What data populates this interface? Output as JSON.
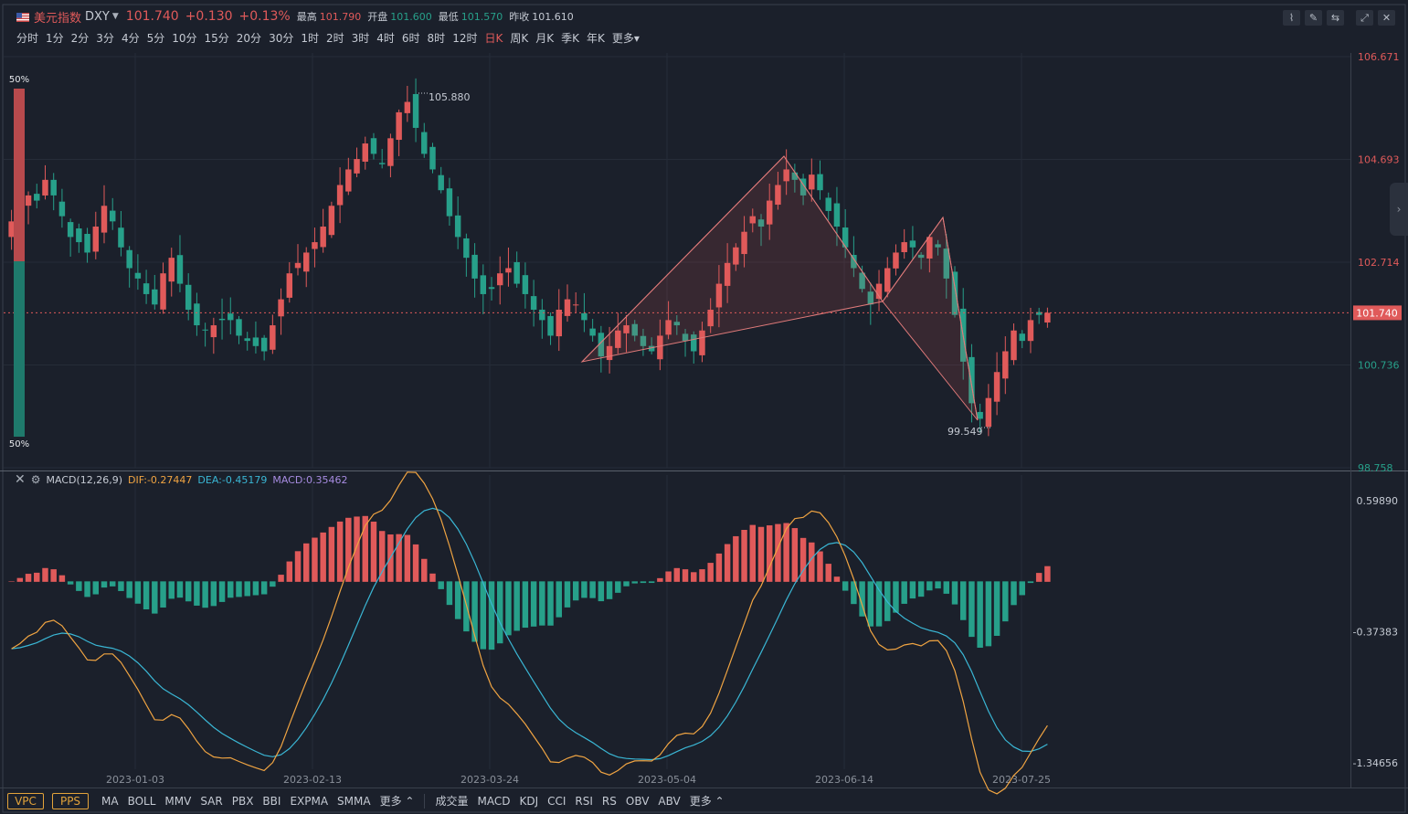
{
  "header": {
    "name": "美元指数",
    "code": "DXY",
    "price": "101.740",
    "change": "+0.130",
    "change_pct": "+0.13%",
    "high_label": "最高",
    "high": "101.790",
    "open_label": "开盘",
    "open": "101.600",
    "low_label": "最低",
    "low": "101.570",
    "prev_label": "昨收",
    "prev": "101.610"
  },
  "toolbar_icons": [
    "line-chart-icon",
    "draw-pen-icon",
    "compare-icon",
    "expand-icon",
    "close-icon"
  ],
  "periods": [
    "分时",
    "1分",
    "2分",
    "3分",
    "4分",
    "5分",
    "10分",
    "15分",
    "20分",
    "30分",
    "1时",
    "2时",
    "3时",
    "4时",
    "6时",
    "8时",
    "12时",
    "日K",
    "周K",
    "月K",
    "季K",
    "年K",
    "更多"
  ],
  "active_period": "日K",
  "vpc": {
    "top": "50%",
    "bottom": "50%"
  },
  "price_axis": [
    "106.671",
    "104.693",
    "102.714",
    "100.736",
    "98.758"
  ],
  "current_price_tag": "101.740",
  "annotations": {
    "high": "105.880",
    "low": "99.549"
  },
  "date_axis": [
    "2023-01-03",
    "2023-02-13",
    "2023-03-24",
    "2023-05-04",
    "2023-06-14",
    "2023-07-25"
  ],
  "macd": {
    "title": "MACD(12,26,9)",
    "dif": "DIF:-0.27447",
    "dea": "DEA:-0.45179",
    "macd": "MACD:0.35462",
    "axis": [
      "0.59890",
      "-0.37383",
      "-1.34656"
    ]
  },
  "indicator_bar": {
    "boxes": [
      "VPC",
      "PPS"
    ],
    "main": [
      "MA",
      "BOLL",
      "MMV",
      "SAR",
      "PBX",
      "BBI",
      "EXPMA",
      "SMMA",
      "更多"
    ],
    "sub": [
      "成交量",
      "MACD",
      "KDJ",
      "CCI",
      "RSI",
      "RS",
      "OBV",
      "ABV",
      "更多"
    ]
  },
  "colors": {
    "up": "#e05a5a",
    "down": "#27a08a",
    "dif": "#f0a442",
    "dea": "#3ab6d4",
    "bg": "#1b202b"
  },
  "chart_data": {
    "type": "candlestick",
    "annotation_pattern_points": [
      [
        "2023-04-14",
        100.85
      ],
      [
        "2023-06-05",
        104.7
      ],
      [
        "2023-06-21",
        101.95
      ],
      [
        "2023-07-10",
        103.25
      ],
      [
        "2023-07-18",
        99.8
      ]
    ],
    "closes_daily_approx": [
      103.5,
      103.8,
      104.0,
      103.9,
      104.3,
      104.0,
      103.6,
      103.2,
      103.1,
      102.9,
      103.4,
      103.8,
      103.5,
      103.0,
      102.6,
      102.4,
      102.1,
      101.9,
      102.5,
      102.8,
      102.3,
      101.8,
      101.5,
      101.4,
      101.5,
      101.6,
      101.6,
      101.3,
      101.2,
      101.1,
      101.0,
      101.5,
      102.0,
      102.5,
      102.7,
      102.9,
      103.1,
      103.4,
      103.8,
      104.2,
      104.5,
      104.7,
      105.0,
      104.8,
      104.6,
      105.1,
      105.6,
      105.8,
      105.3,
      104.8,
      104.5,
      104.1,
      103.6,
      103.2,
      102.8,
      102.4,
      102.1,
      102.2,
      102.5,
      102.6,
      102.3,
      102.1,
      101.8,
      101.6,
      101.3,
      101.8,
      102.0,
      101.9,
      101.6,
      101.3,
      100.9,
      101.1,
      101.4,
      101.5,
      101.3,
      101.1,
      101.0,
      101.3,
      101.6,
      101.5,
      101.2,
      101.0,
      101.4,
      101.8,
      102.3,
      102.7,
      103.0,
      103.3,
      103.6,
      103.4,
      103.9,
      104.2,
      104.5,
      104.3,
      104.0,
      104.4,
      104.1,
      103.7,
      103.4,
      103.0,
      102.6,
      102.2,
      101.9,
      102.3,
      102.6,
      102.9,
      103.1,
      103.0,
      102.8,
      103.2,
      103.0,
      102.4,
      101.7,
      100.8,
      100.0,
      99.7,
      100.1,
      100.6,
      101.0,
      101.4,
      101.2,
      101.6,
      101.7,
      101.74
    ]
  }
}
